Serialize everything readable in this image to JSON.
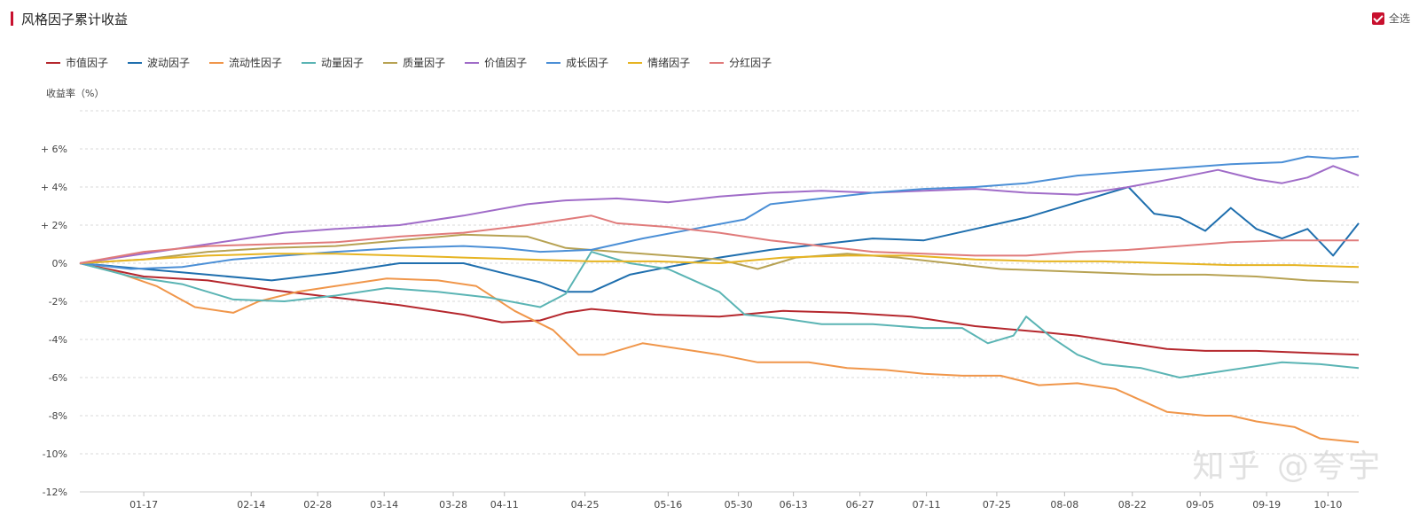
{
  "header": {
    "title": "风格因子累计收益",
    "select_all_label": "全选"
  },
  "watermark": "知乎 @夸宇",
  "chart_data": {
    "type": "line",
    "ylabel": "收益率（%）",
    "ylim": [
      -12,
      8
    ],
    "yticks": [
      6,
      4,
      2,
      0,
      -2,
      -4,
      -6,
      -8,
      -10,
      -12
    ],
    "ytick_labels": [
      "+ 6%",
      "+ 4%",
      "+ 2%",
      "0%",
      "-2%",
      "-4%",
      "-6%",
      "-8%",
      "-10%",
      "-12%"
    ],
    "grid": true,
    "legend": "top-left",
    "xlim": [
      0,
      100
    ],
    "xticks": [
      {
        "x": 5,
        "label": "01-17"
      },
      {
        "x": 13.4,
        "label": "02-14"
      },
      {
        "x": 18.6,
        "label": "02-28"
      },
      {
        "x": 23.8,
        "label": "03-14"
      },
      {
        "x": 29.2,
        "label": "03-28"
      },
      {
        "x": 33.2,
        "label": "04-11"
      },
      {
        "x": 39.5,
        "label": "04-25"
      },
      {
        "x": 46.0,
        "label": "05-16"
      },
      {
        "x": 51.5,
        "label": "05-30"
      },
      {
        "x": 55.8,
        "label": "06-13"
      },
      {
        "x": 61.0,
        "label": "06-27"
      },
      {
        "x": 66.2,
        "label": "07-11"
      },
      {
        "x": 71.7,
        "label": "07-25"
      },
      {
        "x": 77.0,
        "label": "08-08"
      },
      {
        "x": 82.3,
        "label": "08-22"
      },
      {
        "x": 87.6,
        "label": "09-05"
      },
      {
        "x": 92.8,
        "label": "09-19"
      },
      {
        "x": 97.6,
        "label": "10-10"
      }
    ],
    "series": [
      {
        "name": "市值因子",
        "color": "#b5272d",
        "points": [
          [
            0,
            0
          ],
          [
            5,
            -0.7
          ],
          [
            10,
            -0.9
          ],
          [
            15,
            -1.4
          ],
          [
            20,
            -1.8
          ],
          [
            25,
            -2.2
          ],
          [
            30,
            -2.7
          ],
          [
            33,
            -3.1
          ],
          [
            36,
            -3.0
          ],
          [
            38,
            -2.6
          ],
          [
            40,
            -2.4
          ],
          [
            45,
            -2.7
          ],
          [
            50,
            -2.8
          ],
          [
            55,
            -2.5
          ],
          [
            60,
            -2.6
          ],
          [
            65,
            -2.8
          ],
          [
            70,
            -3.3
          ],
          [
            75,
            -3.6
          ],
          [
            78,
            -3.8
          ],
          [
            82,
            -4.2
          ],
          [
            85,
            -4.5
          ],
          [
            88,
            -4.6
          ],
          [
            92,
            -4.6
          ],
          [
            96,
            -4.7
          ],
          [
            100,
            -4.8
          ]
        ]
      },
      {
        "name": "波动因子",
        "color": "#1f6fae",
        "points": [
          [
            0,
            0
          ],
          [
            5,
            -0.3
          ],
          [
            10,
            -0.6
          ],
          [
            15,
            -0.9
          ],
          [
            20,
            -0.5
          ],
          [
            25,
            0
          ],
          [
            30,
            0
          ],
          [
            33,
            -0.5
          ],
          [
            36,
            -1.0
          ],
          [
            38,
            -1.5
          ],
          [
            40,
            -1.5
          ],
          [
            43,
            -0.6
          ],
          [
            46,
            -0.2
          ],
          [
            50,
            0.3
          ],
          [
            54,
            0.7
          ],
          [
            58,
            1.0
          ],
          [
            62,
            1.3
          ],
          [
            66,
            1.2
          ],
          [
            70,
            1.8
          ],
          [
            74,
            2.4
          ],
          [
            78,
            3.2
          ],
          [
            82,
            4.0
          ],
          [
            84,
            2.6
          ],
          [
            86,
            2.4
          ],
          [
            88,
            1.7
          ],
          [
            90,
            2.9
          ],
          [
            92,
            1.8
          ],
          [
            94,
            1.3
          ],
          [
            96,
            1.8
          ],
          [
            98,
            0.4
          ],
          [
            100,
            2.1
          ]
        ]
      },
      {
        "name": "流动性因子",
        "color": "#f0964a",
        "points": [
          [
            0,
            0
          ],
          [
            3,
            -0.5
          ],
          [
            6,
            -1.2
          ],
          [
            9,
            -2.3
          ],
          [
            12,
            -2.6
          ],
          [
            14,
            -2.0
          ],
          [
            17,
            -1.5
          ],
          [
            20,
            -1.2
          ],
          [
            24,
            -0.8
          ],
          [
            28,
            -0.9
          ],
          [
            31,
            -1.2
          ],
          [
            34,
            -2.5
          ],
          [
            37,
            -3.5
          ],
          [
            39,
            -4.8
          ],
          [
            41,
            -4.8
          ],
          [
            44,
            -4.2
          ],
          [
            48,
            -4.6
          ],
          [
            50,
            -4.8
          ],
          [
            53,
            -5.2
          ],
          [
            57,
            -5.2
          ],
          [
            60,
            -5.5
          ],
          [
            63,
            -5.6
          ],
          [
            66,
            -5.8
          ],
          [
            69,
            -5.9
          ],
          [
            72,
            -5.9
          ],
          [
            75,
            -6.4
          ],
          [
            78,
            -6.3
          ],
          [
            81,
            -6.6
          ],
          [
            83,
            -7.2
          ],
          [
            85,
            -7.8
          ],
          [
            88,
            -8.0
          ],
          [
            90,
            -8.0
          ],
          [
            92,
            -8.3
          ],
          [
            95,
            -8.6
          ],
          [
            97,
            -9.2
          ],
          [
            100,
            -9.4
          ]
        ]
      },
      {
        "name": "动量因子",
        "color": "#5ab4b4",
        "points": [
          [
            0,
            0
          ],
          [
            4,
            -0.7
          ],
          [
            8,
            -1.1
          ],
          [
            12,
            -1.9
          ],
          [
            16,
            -2.0
          ],
          [
            20,
            -1.7
          ],
          [
            24,
            -1.3
          ],
          [
            28,
            -1.5
          ],
          [
            32,
            -1.8
          ],
          [
            36,
            -2.3
          ],
          [
            38,
            -1.6
          ],
          [
            40,
            0.6
          ],
          [
            43,
            0
          ],
          [
            46,
            -0.3
          ],
          [
            50,
            -1.5
          ],
          [
            52,
            -2.7
          ],
          [
            55,
            -2.9
          ],
          [
            58,
            -3.2
          ],
          [
            62,
            -3.2
          ],
          [
            66,
            -3.4
          ],
          [
            69,
            -3.4
          ],
          [
            71,
            -4.2
          ],
          [
            73,
            -3.8
          ],
          [
            74,
            -2.8
          ],
          [
            76,
            -3.9
          ],
          [
            78,
            -4.8
          ],
          [
            80,
            -5.3
          ],
          [
            83,
            -5.5
          ],
          [
            86,
            -6.0
          ],
          [
            90,
            -5.6
          ],
          [
            94,
            -5.2
          ],
          [
            97,
            -5.3
          ],
          [
            100,
            -5.5
          ]
        ]
      },
      {
        "name": "质量因子",
        "color": "#b7a253",
        "points": [
          [
            0,
            0
          ],
          [
            5,
            0.2
          ],
          [
            10,
            0.6
          ],
          [
            15,
            0.8
          ],
          [
            20,
            0.9
          ],
          [
            25,
            1.2
          ],
          [
            30,
            1.5
          ],
          [
            35,
            1.4
          ],
          [
            38,
            0.8
          ],
          [
            42,
            0.6
          ],
          [
            46,
            0.4
          ],
          [
            50,
            0.2
          ],
          [
            53,
            -0.3
          ],
          [
            56,
            0.3
          ],
          [
            60,
            0.5
          ],
          [
            64,
            0.3
          ],
          [
            68,
            0
          ],
          [
            72,
            -0.3
          ],
          [
            76,
            -0.4
          ],
          [
            80,
            -0.5
          ],
          [
            84,
            -0.6
          ],
          [
            88,
            -0.6
          ],
          [
            92,
            -0.7
          ],
          [
            96,
            -0.9
          ],
          [
            100,
            -1.0
          ]
        ]
      },
      {
        "name": "价值因子",
        "color": "#a06cc8",
        "points": [
          [
            0,
            0
          ],
          [
            4,
            0.4
          ],
          [
            8,
            0.8
          ],
          [
            12,
            1.2
          ],
          [
            16,
            1.6
          ],
          [
            20,
            1.8
          ],
          [
            25,
            2.0
          ],
          [
            30,
            2.5
          ],
          [
            35,
            3.1
          ],
          [
            38,
            3.3
          ],
          [
            42,
            3.4
          ],
          [
            46,
            3.2
          ],
          [
            50,
            3.5
          ],
          [
            54,
            3.7
          ],
          [
            58,
            3.8
          ],
          [
            62,
            3.7
          ],
          [
            66,
            3.8
          ],
          [
            70,
            3.9
          ],
          [
            74,
            3.7
          ],
          [
            78,
            3.6
          ],
          [
            82,
            4.0
          ],
          [
            86,
            4.5
          ],
          [
            89,
            4.9
          ],
          [
            92,
            4.4
          ],
          [
            94,
            4.2
          ],
          [
            96,
            4.5
          ],
          [
            98,
            5.1
          ],
          [
            100,
            4.6
          ]
        ]
      },
      {
        "name": "成长因子",
        "color": "#4b8fd6",
        "points": [
          [
            0,
            0
          ],
          [
            4,
            -0.3
          ],
          [
            8,
            -0.2
          ],
          [
            12,
            0.2
          ],
          [
            16,
            0.4
          ],
          [
            20,
            0.6
          ],
          [
            25,
            0.8
          ],
          [
            30,
            0.9
          ],
          [
            33,
            0.8
          ],
          [
            36,
            0.6
          ],
          [
            40,
            0.7
          ],
          [
            44,
            1.3
          ],
          [
            48,
            1.8
          ],
          [
            52,
            2.3
          ],
          [
            54,
            3.1
          ],
          [
            58,
            3.4
          ],
          [
            62,
            3.7
          ],
          [
            66,
            3.9
          ],
          [
            70,
            4.0
          ],
          [
            74,
            4.2
          ],
          [
            78,
            4.6
          ],
          [
            82,
            4.8
          ],
          [
            86,
            5.0
          ],
          [
            90,
            5.2
          ],
          [
            94,
            5.3
          ],
          [
            96,
            5.6
          ],
          [
            98,
            5.5
          ],
          [
            100,
            5.6
          ]
        ]
      },
      {
        "name": "情绪因子",
        "color": "#e6b422",
        "points": [
          [
            0,
            0
          ],
          [
            5,
            0.2
          ],
          [
            10,
            0.4
          ],
          [
            15,
            0.5
          ],
          [
            20,
            0.5
          ],
          [
            25,
            0.4
          ],
          [
            30,
            0.3
          ],
          [
            35,
            0.2
          ],
          [
            40,
            0.1
          ],
          [
            45,
            0.1
          ],
          [
            50,
            0
          ],
          [
            55,
            0.3
          ],
          [
            60,
            0.4
          ],
          [
            65,
            0.4
          ],
          [
            70,
            0.2
          ],
          [
            75,
            0.1
          ],
          [
            80,
            0.1
          ],
          [
            85,
            0
          ],
          [
            90,
            -0.1
          ],
          [
            95,
            -0.1
          ],
          [
            100,
            -0.2
          ]
        ]
      },
      {
        "name": "分红因子",
        "color": "#e07b7b",
        "points": [
          [
            0,
            0
          ],
          [
            5,
            0.6
          ],
          [
            10,
            0.9
          ],
          [
            15,
            1.0
          ],
          [
            20,
            1.1
          ],
          [
            25,
            1.4
          ],
          [
            30,
            1.6
          ],
          [
            35,
            2.0
          ],
          [
            38,
            2.3
          ],
          [
            40,
            2.5
          ],
          [
            42,
            2.1
          ],
          [
            46,
            1.9
          ],
          [
            50,
            1.6
          ],
          [
            54,
            1.2
          ],
          [
            58,
            0.9
          ],
          [
            62,
            0.6
          ],
          [
            66,
            0.5
          ],
          [
            70,
            0.4
          ],
          [
            74,
            0.4
          ],
          [
            78,
            0.6
          ],
          [
            82,
            0.7
          ],
          [
            86,
            0.9
          ],
          [
            90,
            1.1
          ],
          [
            94,
            1.2
          ],
          [
            98,
            1.2
          ],
          [
            100,
            1.2
          ]
        ]
      }
    ]
  }
}
